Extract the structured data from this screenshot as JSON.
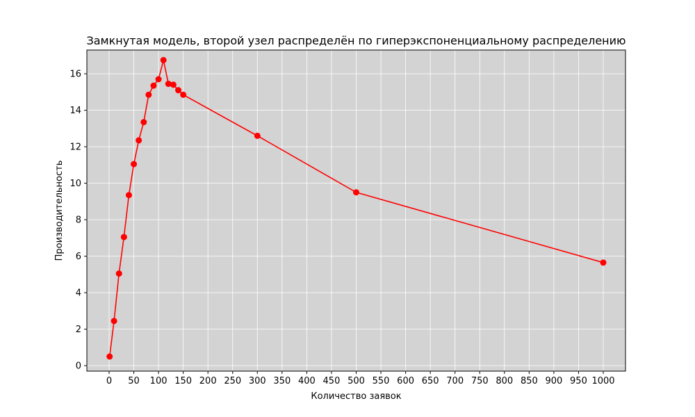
{
  "chart_data": {
    "type": "line",
    "title": "Замкнутая модель, второй узел распределён по гиперэкспоненциальному распределению",
    "xlabel": "Количество заявок",
    "ylabel": "Производительность",
    "xlim": [
      -45,
      1045
    ],
    "ylim": [
      -0.3,
      17.3
    ],
    "x_ticks": [
      0,
      50,
      100,
      150,
      200,
      250,
      300,
      350,
      400,
      450,
      500,
      550,
      600,
      650,
      700,
      750,
      800,
      850,
      900,
      950,
      1000
    ],
    "y_ticks": [
      0,
      2,
      4,
      6,
      8,
      10,
      12,
      14,
      16
    ],
    "grid": true,
    "background": "#d3d3d3",
    "series": [
      {
        "color": "#ff0000",
        "marker": "circle",
        "x": [
          1,
          10,
          20,
          30,
          40,
          50,
          60,
          70,
          80,
          90,
          100,
          110,
          120,
          130,
          140,
          150,
          300,
          500,
          1000
        ],
        "y": [
          0.5,
          2.45,
          5.05,
          7.05,
          9.35,
          11.05,
          12.35,
          13.35,
          14.85,
          15.35,
          15.7,
          16.75,
          15.45,
          15.4,
          15.1,
          14.85,
          12.6,
          9.5,
          5.65
        ]
      }
    ]
  }
}
